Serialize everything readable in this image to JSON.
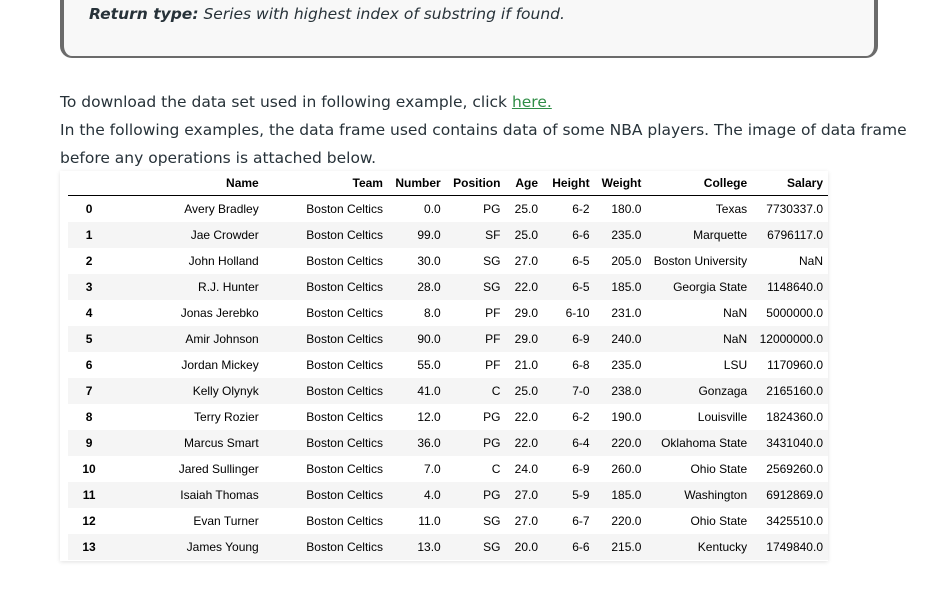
{
  "note": {
    "label": "Return type:",
    "text": " Series with highest index of substring if found."
  },
  "intro": {
    "download_prefix": "To download the data set used in following example, click ",
    "download_link": "here.",
    "description_line1": "In the following examples, the data frame used contains data of some NBA players. The image of data frame",
    "description_line2": "before any operations is attached below."
  },
  "colors": {
    "link": "#2f8d46",
    "text": "#273239",
    "note_border": "#6b6b6b"
  },
  "dataframe": {
    "columns": [
      "",
      "Name",
      "Team",
      "Number",
      "Position",
      "Age",
      "Height",
      "Weight",
      "College",
      "Salary"
    ],
    "rows": [
      [
        "0",
        "Avery Bradley",
        "Boston Celtics",
        "0.0",
        "PG",
        "25.0",
        "6-2",
        "180.0",
        "Texas",
        "7730337.0"
      ],
      [
        "1",
        "Jae Crowder",
        "Boston Celtics",
        "99.0",
        "SF",
        "25.0",
        "6-6",
        "235.0",
        "Marquette",
        "6796117.0"
      ],
      [
        "2",
        "John Holland",
        "Boston Celtics",
        "30.0",
        "SG",
        "27.0",
        "6-5",
        "205.0",
        "Boston University",
        "NaN"
      ],
      [
        "3",
        "R.J. Hunter",
        "Boston Celtics",
        "28.0",
        "SG",
        "22.0",
        "6-5",
        "185.0",
        "Georgia State",
        "1148640.0"
      ],
      [
        "4",
        "Jonas Jerebko",
        "Boston Celtics",
        "8.0",
        "PF",
        "29.0",
        "6-10",
        "231.0",
        "NaN",
        "5000000.0"
      ],
      [
        "5",
        "Amir Johnson",
        "Boston Celtics",
        "90.0",
        "PF",
        "29.0",
        "6-9",
        "240.0",
        "NaN",
        "12000000.0"
      ],
      [
        "6",
        "Jordan Mickey",
        "Boston Celtics",
        "55.0",
        "PF",
        "21.0",
        "6-8",
        "235.0",
        "LSU",
        "1170960.0"
      ],
      [
        "7",
        "Kelly Olynyk",
        "Boston Celtics",
        "41.0",
        "C",
        "25.0",
        "7-0",
        "238.0",
        "Gonzaga",
        "2165160.0"
      ],
      [
        "8",
        "Terry Rozier",
        "Boston Celtics",
        "12.0",
        "PG",
        "22.0",
        "6-2",
        "190.0",
        "Louisville",
        "1824360.0"
      ],
      [
        "9",
        "Marcus Smart",
        "Boston Celtics",
        "36.0",
        "PG",
        "22.0",
        "6-4",
        "220.0",
        "Oklahoma State",
        "3431040.0"
      ],
      [
        "10",
        "Jared Sullinger",
        "Boston Celtics",
        "7.0",
        "C",
        "24.0",
        "6-9",
        "260.0",
        "Ohio State",
        "2569260.0"
      ],
      [
        "11",
        "Isaiah Thomas",
        "Boston Celtics",
        "4.0",
        "PG",
        "27.0",
        "5-9",
        "185.0",
        "Washington",
        "6912869.0"
      ],
      [
        "12",
        "Evan Turner",
        "Boston Celtics",
        "11.0",
        "SG",
        "27.0",
        "6-7",
        "220.0",
        "Ohio State",
        "3425510.0"
      ],
      [
        "13",
        "James Young",
        "Boston Celtics",
        "13.0",
        "SG",
        "20.0",
        "6-6",
        "215.0",
        "Kentucky",
        "1749840.0"
      ]
    ]
  }
}
